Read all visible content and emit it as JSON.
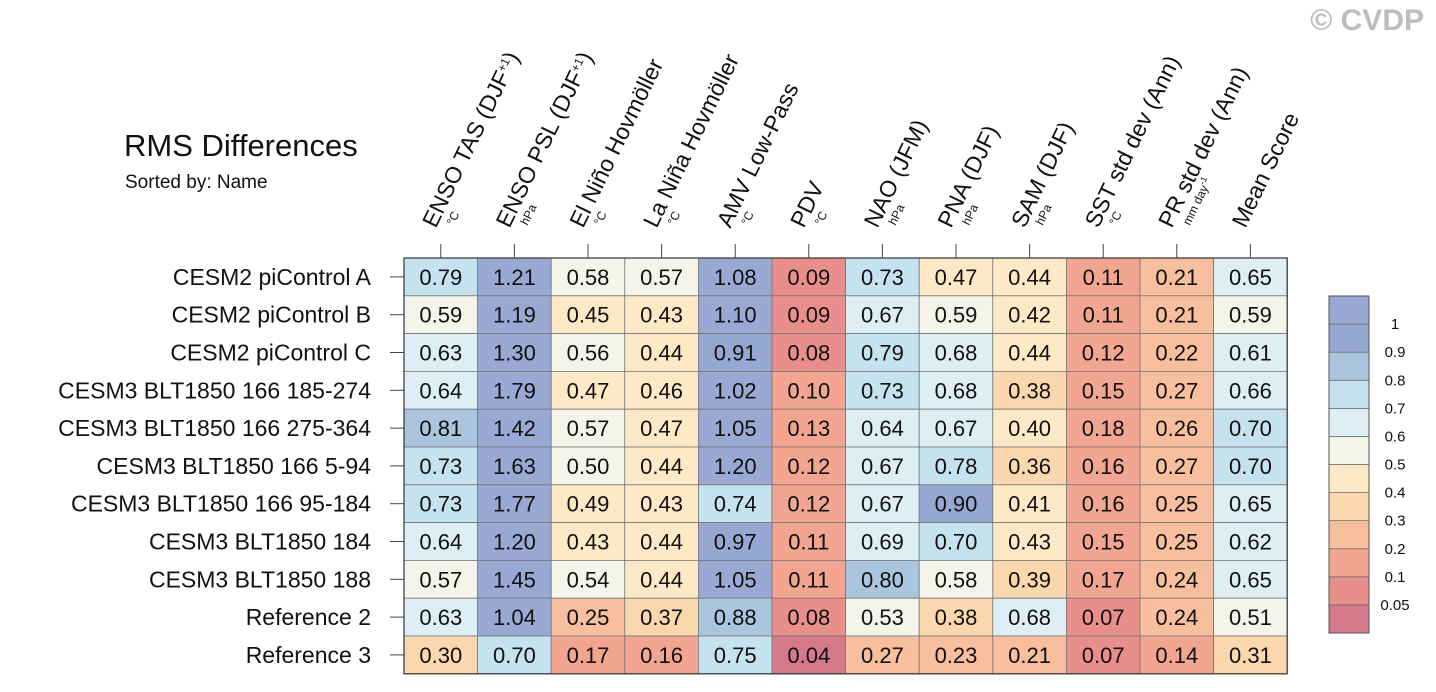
{
  "title": "RMS Differences",
  "subtitle": "Sorted by: Name",
  "copyright": "© CVDP",
  "chart_data": {
    "type": "heatmap",
    "title": "RMS Differences",
    "subtitle": "Sorted by: Name",
    "columns": [
      {
        "name": "ENSO TAS (DJF",
        "sup": "+1",
        "close": ")",
        "unit": "°C"
      },
      {
        "name": "ENSO PSL (DJF",
        "sup": "+1",
        "close": ")",
        "unit": "hPa"
      },
      {
        "name": "El Niño Hovmöller",
        "unit": "°C"
      },
      {
        "name": "La Niña Hovmöller",
        "unit": "°C"
      },
      {
        "name": "AMV Low-Pass",
        "unit": "°C"
      },
      {
        "name": "PDV",
        "unit": "°C"
      },
      {
        "name": "NAO (JFM)",
        "unit": "hPa"
      },
      {
        "name": "PNA (DJF)",
        "unit": "hPa"
      },
      {
        "name": "SAM (DJF)",
        "unit": "hPa"
      },
      {
        "name": "SST std dev (Ann)",
        "unit": "°C"
      },
      {
        "name": "PR std dev (Ann)",
        "unit": "mm day",
        "unit_sup": "-1"
      },
      {
        "name": "Mean Score",
        "unit": ""
      }
    ],
    "rows": [
      "CESM2 piControl A",
      "CESM2 piControl B",
      "CESM2 piControl C",
      "CESM3 BLT1850 166 185-274",
      "CESM3 BLT1850 166 275-364",
      "CESM3 BLT1850 166 5-94",
      "CESM3 BLT1850 166 95-184",
      "CESM3 BLT1850 184",
      "CESM3 BLT1850 188",
      "Reference 2",
      "Reference 3"
    ],
    "values": [
      [
        0.79,
        1.21,
        0.58,
        0.57,
        1.08,
        0.09,
        0.73,
        0.47,
        0.44,
        0.11,
        0.21,
        0.65
      ],
      [
        0.59,
        1.19,
        0.45,
        0.43,
        1.1,
        0.09,
        0.67,
        0.59,
        0.42,
        0.11,
        0.21,
        0.59
      ],
      [
        0.63,
        1.3,
        0.56,
        0.44,
        0.91,
        0.08,
        0.79,
        0.68,
        0.44,
        0.12,
        0.22,
        0.61
      ],
      [
        0.64,
        1.79,
        0.47,
        0.46,
        1.02,
        0.1,
        0.73,
        0.68,
        0.38,
        0.15,
        0.27,
        0.66
      ],
      [
        0.81,
        1.42,
        0.57,
        0.47,
        1.05,
        0.13,
        0.64,
        0.67,
        0.4,
        0.18,
        0.26,
        0.7
      ],
      [
        0.73,
        1.63,
        0.5,
        0.44,
        1.2,
        0.12,
        0.67,
        0.78,
        0.36,
        0.16,
        0.27,
        0.7
      ],
      [
        0.73,
        1.77,
        0.49,
        0.43,
        0.74,
        0.12,
        0.67,
        0.9,
        0.41,
        0.16,
        0.25,
        0.65
      ],
      [
        0.64,
        1.2,
        0.43,
        0.44,
        0.97,
        0.11,
        0.69,
        0.7,
        0.43,
        0.15,
        0.25,
        0.62
      ],
      [
        0.57,
        1.45,
        0.54,
        0.44,
        1.05,
        0.11,
        0.8,
        0.58,
        0.39,
        0.17,
        0.24,
        0.65
      ],
      [
        0.63,
        1.04,
        0.25,
        0.37,
        0.88,
        0.08,
        0.53,
        0.38,
        0.68,
        0.07,
        0.24,
        0.51
      ],
      [
        0.3,
        0.7,
        0.17,
        0.16,
        0.75,
        0.04,
        0.27,
        0.23,
        0.21,
        0.07,
        0.14,
        0.31
      ]
    ],
    "colorbar": {
      "levels": [
        0.05,
        0.1,
        0.2,
        0.3,
        0.4,
        0.5,
        0.6,
        0.7,
        0.8,
        0.9,
        1
      ],
      "labels": [
        "1",
        "0.9",
        "0.8",
        "0.7",
        "0.6",
        "0.5",
        "0.4",
        "0.3",
        "0.2",
        "0.1",
        "0.05"
      ],
      "colors": [
        "#d47a8a",
        "#e88f8c",
        "#f2a692",
        "#f7bf9d",
        "#fad7ad",
        "#fde9c5",
        "#f4f4ea",
        "#ddeff5",
        "#c4e3ef",
        "#aac5de",
        "#96a8d2",
        "#9aa9d4"
      ]
    }
  }
}
